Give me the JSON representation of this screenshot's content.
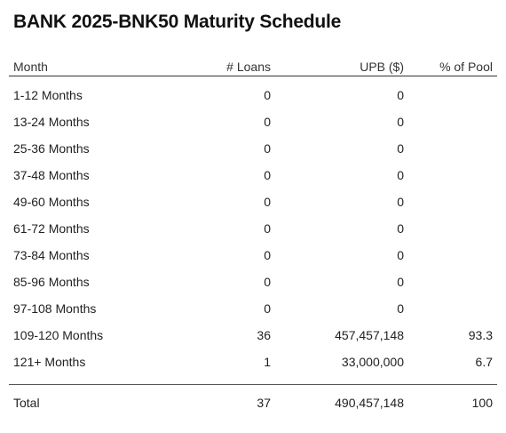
{
  "title": "BANK 2025-BNK50 Maturity Schedule",
  "columns": {
    "month": "Month",
    "loans": "# Loans",
    "upb": "UPB ($)",
    "pct": "% of Pool"
  },
  "rows": [
    {
      "month": "1-12 Months",
      "loans": "0",
      "upb": "0",
      "pct": ""
    },
    {
      "month": "13-24 Months",
      "loans": "0",
      "upb": "0",
      "pct": ""
    },
    {
      "month": "25-36 Months",
      "loans": "0",
      "upb": "0",
      "pct": ""
    },
    {
      "month": "37-48 Months",
      "loans": "0",
      "upb": "0",
      "pct": ""
    },
    {
      "month": "49-60 Months",
      "loans": "0",
      "upb": "0",
      "pct": ""
    },
    {
      "month": "61-72 Months",
      "loans": "0",
      "upb": "0",
      "pct": ""
    },
    {
      "month": "73-84 Months",
      "loans": "0",
      "upb": "0",
      "pct": ""
    },
    {
      "month": "85-96 Months",
      "loans": "0",
      "upb": "0",
      "pct": ""
    },
    {
      "month": "97-108 Months",
      "loans": "0",
      "upb": "0",
      "pct": ""
    },
    {
      "month": "109-120 Months",
      "loans": "36",
      "upb": "457,457,148",
      "pct": "93.3"
    },
    {
      "month": "121+ Months",
      "loans": "1",
      "upb": "33,000,000",
      "pct": "6.7"
    }
  ],
  "total": {
    "month": "Total",
    "loans": "37",
    "upb": "490,457,148",
    "pct": "100"
  }
}
